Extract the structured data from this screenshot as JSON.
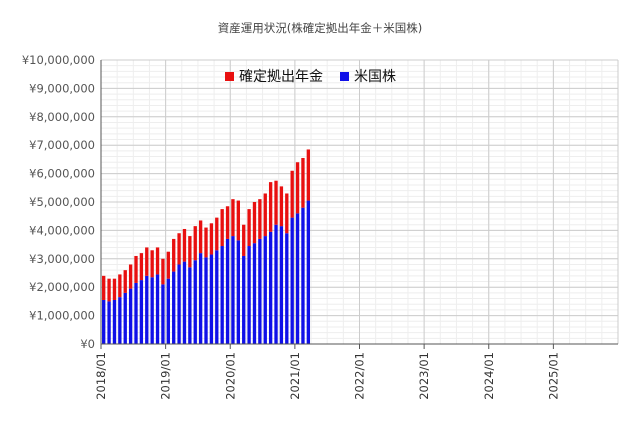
{
  "chart_data": {
    "type": "bar",
    "stacked": true,
    "title": "資産運用状況(株確定拠出年金＋米国株)",
    "xlabel": "",
    "ylabel": "",
    "ylim": [
      0,
      10000000
    ],
    "y_ticks": [
      0,
      1000000,
      2000000,
      3000000,
      4000000,
      5000000,
      6000000,
      7000000,
      8000000,
      9000000,
      10000000
    ],
    "y_tick_labels": [
      "¥0",
      "¥1,000,000",
      "¥2,000,000",
      "¥3,000,000",
      "¥4,000,000",
      "¥5,000,000",
      "¥6,000,000",
      "¥7,000,000",
      "¥8,000,000",
      "¥9,000,000",
      "¥10,000,000"
    ],
    "x_start": "2018-01",
    "x_end": "2025-12",
    "x_tick_labels": [
      "2018/01",
      "2019/01",
      "2020/01",
      "2021/01",
      "2022/01",
      "2023/01",
      "2024/01",
      "2025/01"
    ],
    "grid": true,
    "legend_position": "top",
    "categories": [
      "2018-01",
      "2018-02",
      "2018-03",
      "2018-04",
      "2018-05",
      "2018-06",
      "2018-07",
      "2018-08",
      "2018-09",
      "2018-10",
      "2018-11",
      "2018-12",
      "2019-01",
      "2019-02",
      "2019-03",
      "2019-04",
      "2019-05",
      "2019-06",
      "2019-07",
      "2019-08",
      "2019-09",
      "2019-10",
      "2019-11",
      "2019-12",
      "2020-01",
      "2020-02",
      "2020-03",
      "2020-04",
      "2020-05",
      "2020-06",
      "2020-07",
      "2020-08",
      "2020-09",
      "2020-10",
      "2020-11",
      "2020-12",
      "2021-01",
      "2021-02",
      "2021-03"
    ],
    "series": [
      {
        "name": "米国株",
        "color": "#1010e8",
        "values": [
          1550000,
          1500000,
          1550000,
          1650000,
          1800000,
          1950000,
          2150000,
          2250000,
          2400000,
          2350000,
          2450000,
          2100000,
          2300000,
          2550000,
          2800000,
          2900000,
          2700000,
          2950000,
          3200000,
          3050000,
          3150000,
          3300000,
          3450000,
          3700000,
          3800000,
          3650000,
          3100000,
          3450000,
          3550000,
          3700000,
          3800000,
          3950000,
          4200000,
          4150000,
          3900000,
          4450000,
          4600000,
          4800000,
          5050000
        ]
      },
      {
        "name": "確定拠出年金",
        "color": "#e81010",
        "values": [
          850000,
          800000,
          750000,
          800000,
          800000,
          850000,
          950000,
          950000,
          1000000,
          950000,
          950000,
          900000,
          950000,
          1150000,
          1100000,
          1150000,
          1100000,
          1200000,
          1150000,
          1050000,
          1100000,
          1150000,
          1300000,
          1150000,
          1300000,
          1400000,
          1100000,
          1300000,
          1450000,
          1400000,
          1500000,
          1750000,
          1550000,
          1400000,
          1400000,
          1650000,
          1800000,
          1750000,
          1800000
        ]
      }
    ]
  }
}
